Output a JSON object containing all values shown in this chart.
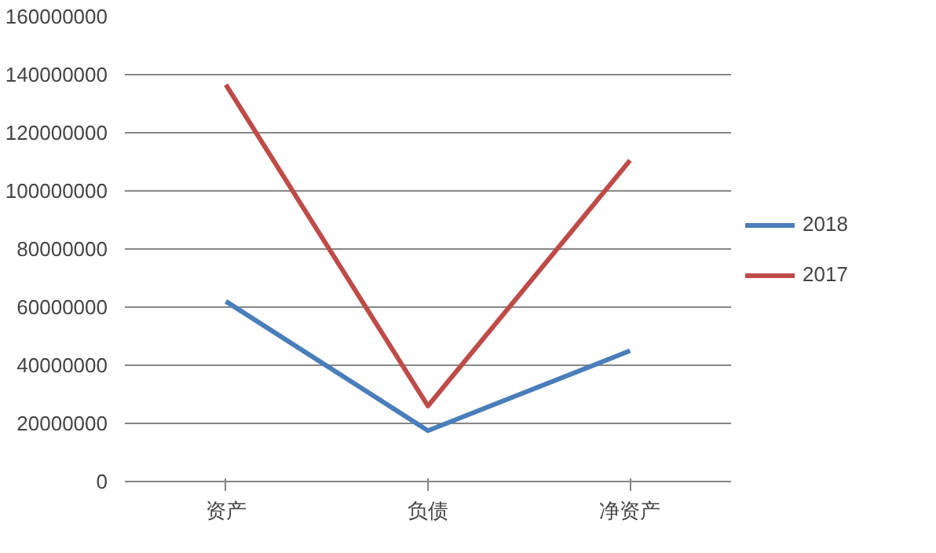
{
  "chart_data": {
    "type": "line",
    "categories": [
      "资产",
      "负债",
      "净资产"
    ],
    "series": [
      {
        "name": "2018",
        "color": "#4a7ebb",
        "values": [
          62000000,
          17500000,
          45000000
        ]
      },
      {
        "name": "2017",
        "color": "#be4b48",
        "values": [
          136500000,
          26000000,
          110500000
        ]
      }
    ],
    "ylim": [
      0,
      160000000
    ],
    "yticks": [
      0,
      20000000,
      40000000,
      60000000,
      80000000,
      100000000,
      120000000,
      140000000,
      160000000
    ],
    "grid": "y",
    "legend": "right",
    "marker": "none",
    "line_style": "solid"
  }
}
